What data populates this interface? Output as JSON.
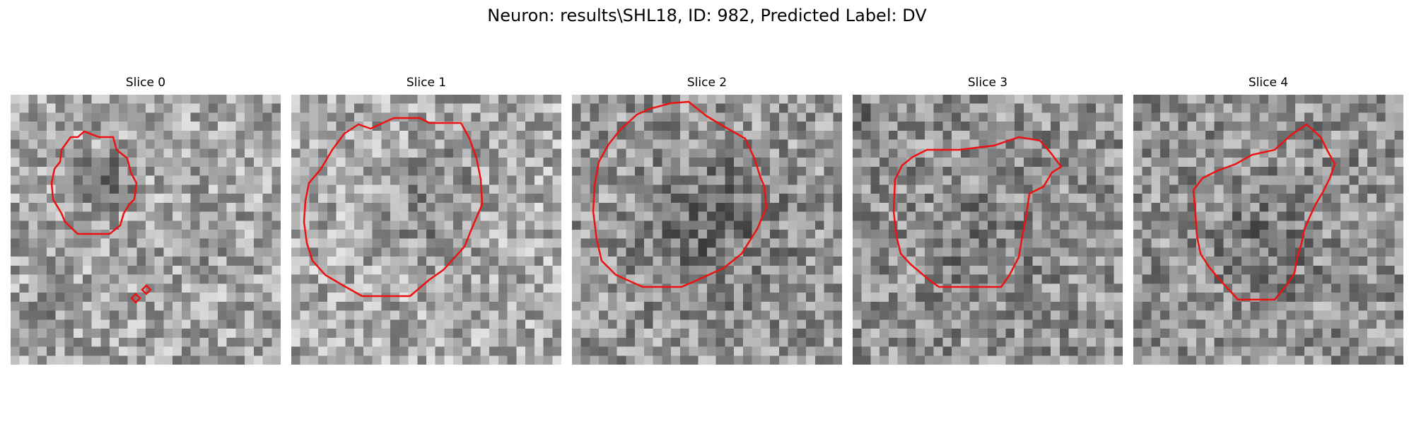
{
  "figure": {
    "title": "Neuron: results\\SHL18, ID: 982, Predicted Label: DV"
  },
  "colors": {
    "contour": "#ee1111",
    "background": "#ffffff"
  },
  "slices": [
    {
      "title": "Slice 0"
    },
    {
      "title": "Slice 1"
    },
    {
      "title": "Slice 2"
    },
    {
      "title": "Slice 3"
    },
    {
      "title": "Slice 4"
    }
  ]
}
